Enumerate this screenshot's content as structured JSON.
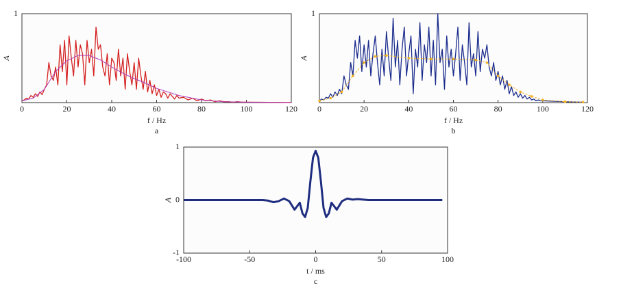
{
  "chart_data": [
    {
      "type": "line",
      "caption": "a",
      "xlabel": "f / Hz",
      "ylabel": "A",
      "xlim": [
        0,
        120
      ],
      "ylim": [
        0,
        1
      ],
      "xticks": [
        0,
        20,
        40,
        60,
        80,
        100,
        120
      ],
      "yticks": [
        1
      ],
      "series": [
        {
          "color": "#d42020",
          "width": 1.3,
          "x": [
            0,
            1,
            2,
            3,
            4,
            5,
            6,
            7,
            8,
            9,
            10,
            11,
            12,
            13,
            14,
            15,
            16,
            17,
            18,
            19,
            20,
            21,
            22,
            23,
            24,
            25,
            26,
            27,
            28,
            29,
            30,
            31,
            32,
            33,
            34,
            35,
            36,
            37,
            38,
            39,
            40,
            41,
            42,
            43,
            44,
            45,
            46,
            47,
            48,
            49,
            50,
            51,
            52,
            53,
            54,
            55,
            56,
            57,
            58,
            59,
            60,
            61,
            62,
            63,
            64,
            65,
            66,
            67,
            68,
            69,
            70,
            72,
            74,
            76,
            78,
            80,
            82,
            84,
            86,
            88,
            90,
            92,
            94,
            96,
            98,
            100,
            110,
            120
          ],
          "values": [
            0.02,
            0.03,
            0.05,
            0.04,
            0.08,
            0.06,
            0.1,
            0.07,
            0.12,
            0.09,
            0.15,
            0.2,
            0.45,
            0.3,
            0.25,
            0.4,
            0.2,
            0.65,
            0.35,
            0.7,
            0.2,
            0.75,
            0.5,
            0.3,
            0.7,
            0.4,
            0.65,
            0.55,
            0.2,
            0.7,
            0.45,
            0.6,
            0.3,
            0.85,
            0.6,
            0.65,
            0.4,
            0.3,
            0.55,
            0.2,
            0.5,
            0.45,
            0.25,
            0.6,
            0.3,
            0.5,
            0.15,
            0.55,
            0.35,
            0.2,
            0.45,
            0.15,
            0.5,
            0.3,
            0.15,
            0.35,
            0.12,
            0.25,
            0.1,
            0.2,
            0.08,
            0.15,
            0.06,
            0.12,
            0.1,
            0.05,
            0.1,
            0.07,
            0.04,
            0.08,
            0.05,
            0.06,
            0.03,
            0.05,
            0.02,
            0.04,
            0.02,
            0.03,
            0.01,
            0.02,
            0.01,
            0.01,
            0.005,
            0.01,
            0.005,
            0.005,
            0.003,
            0.002
          ]
        },
        {
          "color": "#b03cb8",
          "width": 1,
          "x": [
            0,
            5,
            10,
            15,
            20,
            25,
            30,
            35,
            40,
            45,
            50,
            55,
            60,
            70,
            80,
            90,
            100,
            120
          ],
          "values": [
            0.02,
            0.05,
            0.15,
            0.35,
            0.47,
            0.53,
            0.53,
            0.48,
            0.4,
            0.33,
            0.27,
            0.22,
            0.16,
            0.08,
            0.03,
            0.01,
            0.005,
            0
          ]
        }
      ]
    },
    {
      "type": "line",
      "caption": "b",
      "xlabel": "f / Hz",
      "ylabel": "A",
      "xlim": [
        0,
        120
      ],
      "ylim": [
        0,
        1
      ],
      "xticks": [
        0,
        20,
        40,
        60,
        80,
        100,
        120
      ],
      "yticks": [
        1
      ],
      "series": [
        {
          "color": "#1a2b8c",
          "width": 1.3,
          "x": [
            0,
            1,
            2,
            3,
            4,
            5,
            6,
            7,
            8,
            9,
            10,
            11,
            12,
            13,
            14,
            15,
            16,
            17,
            18,
            19,
            20,
            21,
            22,
            23,
            24,
            25,
            26,
            27,
            28,
            29,
            30,
            31,
            32,
            33,
            34,
            35,
            36,
            37,
            38,
            39,
            40,
            41,
            42,
            43,
            44,
            45,
            46,
            47,
            48,
            49,
            50,
            51,
            52,
            53,
            54,
            55,
            56,
            57,
            58,
            59,
            60,
            61,
            62,
            63,
            64,
            65,
            66,
            67,
            68,
            69,
            70,
            71,
            72,
            73,
            74,
            75,
            76,
            77,
            78,
            79,
            80,
            81,
            82,
            83,
            84,
            85,
            86,
            87,
            88,
            89,
            90,
            91,
            92,
            93,
            94,
            95,
            96,
            97,
            98,
            99,
            100,
            110,
            118
          ],
          "values": [
            0.02,
            0.04,
            0.03,
            0.06,
            0.05,
            0.1,
            0.06,
            0.12,
            0.08,
            0.15,
            0.1,
            0.3,
            0.2,
            0.15,
            0.45,
            0.3,
            0.7,
            0.5,
            0.75,
            0.35,
            0.65,
            0.4,
            0.7,
            0.3,
            0.55,
            0.75,
            0.45,
            0.2,
            0.6,
            0.3,
            0.8,
            0.5,
            0.25,
            0.95,
            0.4,
            0.7,
            0.2,
            0.6,
            0.85,
            0.3,
            0.55,
            0.75,
            0.1,
            0.6,
            0.4,
            0.9,
            0.25,
            0.65,
            0.45,
            0.85,
            0.3,
            0.7,
            0.2,
            1.0,
            0.45,
            0.6,
            0.15,
            0.75,
            0.4,
            0.6,
            0.3,
            0.55,
            0.85,
            0.25,
            0.65,
            0.45,
            0.2,
            0.9,
            0.4,
            0.55,
            0.3,
            0.8,
            0.35,
            0.6,
            0.5,
            0.65,
            0.4,
            0.3,
            0.45,
            0.25,
            0.35,
            0.2,
            0.3,
            0.15,
            0.25,
            0.1,
            0.18,
            0.08,
            0.12,
            0.06,
            0.1,
            0.05,
            0.08,
            0.04,
            0.06,
            0.03,
            0.04,
            0.02,
            0.03,
            0.02,
            0.02,
            0.01,
            0.005
          ]
        },
        {
          "color": "#f0b020",
          "width": 1,
          "dashed": true,
          "markers": true,
          "x": [
            0,
            5,
            10,
            15,
            20,
            25,
            30,
            40,
            50,
            60,
            70,
            75,
            80,
            85,
            90,
            95,
            100,
            110,
            118
          ],
          "values": [
            0.02,
            0.05,
            0.12,
            0.3,
            0.45,
            0.52,
            0.53,
            0.5,
            0.49,
            0.49,
            0.48,
            0.45,
            0.3,
            0.2,
            0.12,
            0.07,
            0.03,
            0.01,
            0.005
          ]
        }
      ]
    },
    {
      "type": "line",
      "caption": "c",
      "xlabel": "t / ms",
      "ylabel": "A",
      "xlim": [
        -100,
        100
      ],
      "ylim": [
        -1,
        1
      ],
      "xticks": [
        -100,
        -50,
        0,
        50,
        100
      ],
      "yticks": [
        -1,
        0,
        1
      ],
      "series": [
        {
          "color": "#1f2d80",
          "width": 3,
          "x": [
            -100,
            -40,
            -36,
            -32,
            -28,
            -24,
            -20,
            -16,
            -12,
            -10,
            -8,
            -6,
            -4,
            -2,
            0,
            2,
            4,
            6,
            8,
            10,
            12,
            16,
            20,
            24,
            28,
            32,
            36,
            40,
            96
          ],
          "values": [
            0,
            0,
            -0.01,
            -0.04,
            -0.02,
            0.03,
            -0.02,
            -0.18,
            -0.05,
            -0.25,
            -0.32,
            -0.15,
            0.35,
            0.8,
            0.93,
            0.8,
            0.35,
            -0.15,
            -0.32,
            -0.25,
            -0.05,
            -0.18,
            -0.02,
            0.03,
            0.01,
            0.02,
            0.01,
            0,
            0
          ]
        }
      ]
    }
  ]
}
